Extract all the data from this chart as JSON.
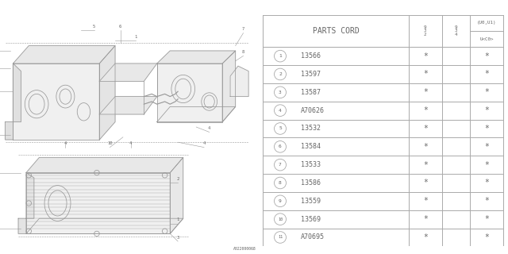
{
  "diagram_id": "A022000068",
  "parts": [
    {
      "num": 1,
      "code": "13566"
    },
    {
      "num": 2,
      "code": "13597"
    },
    {
      "num": 3,
      "code": "13587"
    },
    {
      "num": 4,
      "code": "A70626"
    },
    {
      "num": 5,
      "code": "13532"
    },
    {
      "num": 6,
      "code": "13584"
    },
    {
      "num": 7,
      "code": "13533"
    },
    {
      "num": 8,
      "code": "13586"
    },
    {
      "num": 9,
      "code": "13559"
    },
    {
      "num": 10,
      "code": "13569"
    },
    {
      "num": 11,
      "code": "A70695"
    }
  ],
  "bg_color": "#ffffff",
  "line_color": "#999999",
  "text_color": "#666666",
  "table_line_color": "#aaaaaa",
  "col_header1": "9\n3\n2",
  "col_header2": "9\n3\n4",
  "col_top_label": "(U0,U1)",
  "col_bot_label": "U<C0>"
}
